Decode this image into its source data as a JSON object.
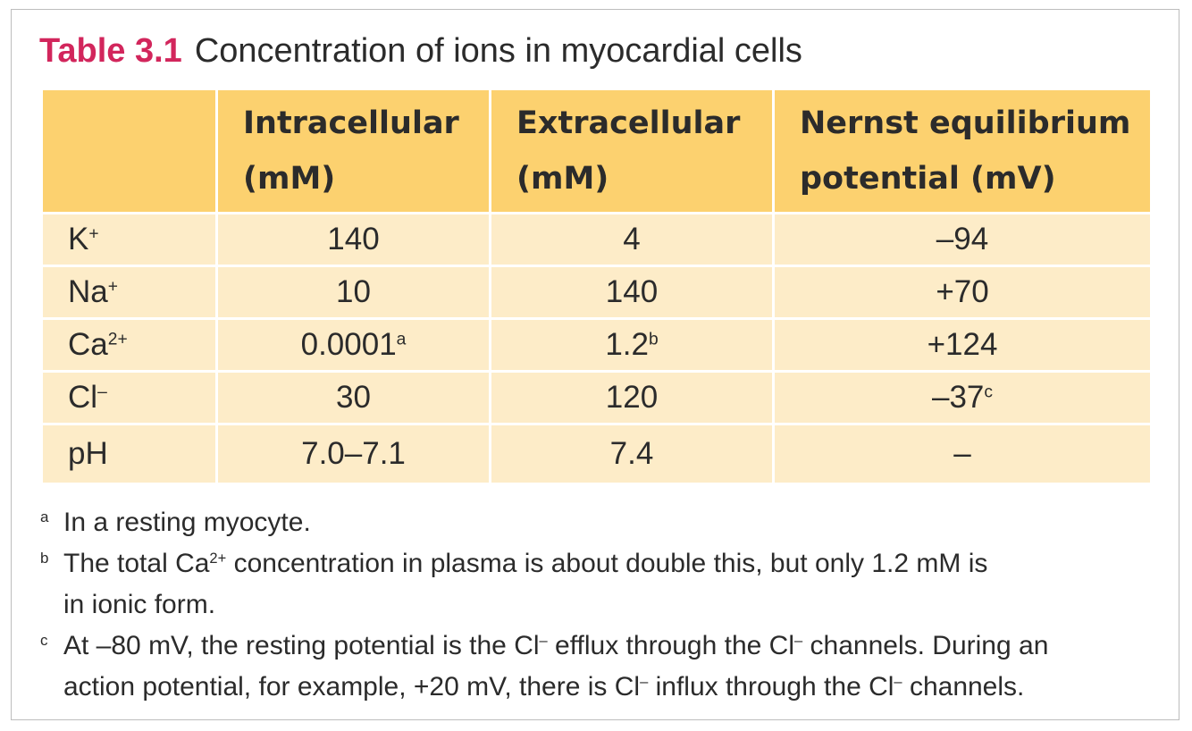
{
  "title": {
    "label": "Table 3.1",
    "text": "Concentration of ions in myocardial cells"
  },
  "table": {
    "header": [
      [
        "Intracellular",
        "(mM)"
      ],
      [
        "Extracellular",
        "(mM)"
      ],
      [
        "Nernst equilibrium",
        "potential (mV)"
      ]
    ],
    "rows": [
      {
        "ion": [
          "K",
          "+"
        ],
        "cells": [
          [
            "140"
          ],
          [
            "4"
          ],
          [
            "–94"
          ]
        ]
      },
      {
        "ion": [
          "Na",
          "+"
        ],
        "cells": [
          [
            "10"
          ],
          [
            "140"
          ],
          [
            "+70"
          ]
        ]
      },
      {
        "ion": [
          "Ca",
          "2+"
        ],
        "cells": [
          [
            "0.0001",
            "a"
          ],
          [
            "1.2",
            "b"
          ],
          [
            "+124"
          ]
        ]
      },
      {
        "ion": [
          "Cl",
          "–"
        ],
        "cells": [
          [
            "30"
          ],
          [
            "120"
          ],
          [
            "–37",
            "c"
          ]
        ]
      },
      {
        "ion": [
          "pH"
        ],
        "cells": [
          [
            "7.0–7.1"
          ],
          [
            "7.4"
          ],
          [
            "–"
          ]
        ]
      }
    ]
  },
  "footnotes": [
    {
      "mark": "a",
      "lines": [
        [
          {
            "t": "In a resting myocyte."
          }
        ]
      ]
    },
    {
      "mark": "b",
      "lines": [
        [
          {
            "t": "The total Ca"
          },
          {
            "s": "2+"
          },
          {
            "t": " concentration in plasma is about double this, but only 1.2 mM is"
          }
        ],
        [
          {
            "t": "in ionic form."
          }
        ]
      ]
    },
    {
      "mark": "c",
      "lines": [
        [
          {
            "t": "At –80 mV, the resting potential is the Cl"
          },
          {
            "s": "–"
          },
          {
            "t": " efflux through the Cl"
          },
          {
            "s": "–"
          },
          {
            "t": " channels. During an"
          }
        ],
        [
          {
            "t": "action potential, for example, +20 mV, there is Cl"
          },
          {
            "s": "–"
          },
          {
            "t": " influx through the Cl"
          },
          {
            "s": "–"
          },
          {
            "t": " channels."
          }
        ]
      ]
    }
  ]
}
